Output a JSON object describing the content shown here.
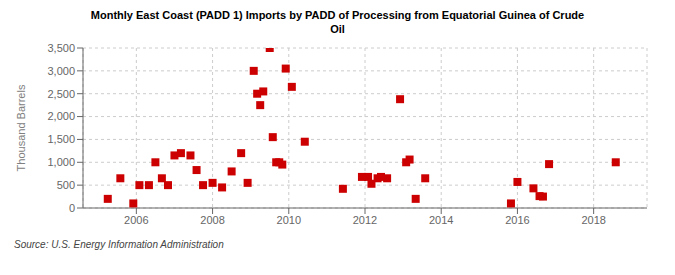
{
  "chart_data": {
    "type": "scatter",
    "title": "Monthly East Coast (PADD 1) Imports by PADD of Processing from Equatorial Guinea of Crude\nOil",
    "ylabel": "Thousand Barrels",
    "source": "Source: U.S. Energy Information Administration",
    "color": "#cc0000",
    "marker": "square",
    "grid": true,
    "xlim": [
      2004.6,
      2019.4
    ],
    "ylim": [
      0,
      3500
    ],
    "xticks": [
      2006,
      2008,
      2010,
      2012,
      2014,
      2016,
      2018
    ],
    "yticks": [
      0,
      500,
      {
        "value": 1000,
        "label": "1,000"
      },
      {
        "value": 1500,
        "label": "1,500"
      },
      {
        "value": 2000,
        "label": "2,000"
      },
      {
        "value": 2500,
        "label": "2,500"
      },
      {
        "value": 3000,
        "label": "3,000"
      },
      {
        "value": 3500,
        "label": "3,500"
      }
    ],
    "x": [
      2005.25,
      2005.58,
      2005.92,
      2006.08,
      2006.33,
      2006.5,
      2006.67,
      2006.83,
      2007.0,
      2007.17,
      2007.42,
      2007.58,
      2007.75,
      2008.0,
      2008.25,
      2008.5,
      2008.75,
      2008.92,
      2009.08,
      2009.17,
      2009.25,
      2009.33,
      2009.5,
      2009.58,
      2009.67,
      2009.75,
      2009.83,
      2009.92,
      2010.08,
      2010.42,
      2011.42,
      2011.92,
      2012.08,
      2012.17,
      2012.33,
      2012.42,
      2012.58,
      2012.92,
      2013.08,
      2013.17,
      2013.33,
      2013.58,
      2015.83,
      2016.0,
      2016.42,
      2016.58,
      2016.67,
      2016.83,
      2018.58
    ],
    "values": [
      200,
      650,
      100,
      500,
      500,
      1000,
      650,
      500,
      1150,
      1200,
      1150,
      830,
      500,
      550,
      450,
      800,
      1200,
      550,
      3000,
      2500,
      2250,
      2550,
      3500,
      1550,
      1000,
      1000,
      950,
      3050,
      2650,
      1450,
      420,
      680,
      680,
      530,
      650,
      680,
      650,
      2380,
      1000,
      1060,
      200,
      650,
      100,
      570,
      430,
      260,
      250,
      960,
      1000
    ]
  }
}
